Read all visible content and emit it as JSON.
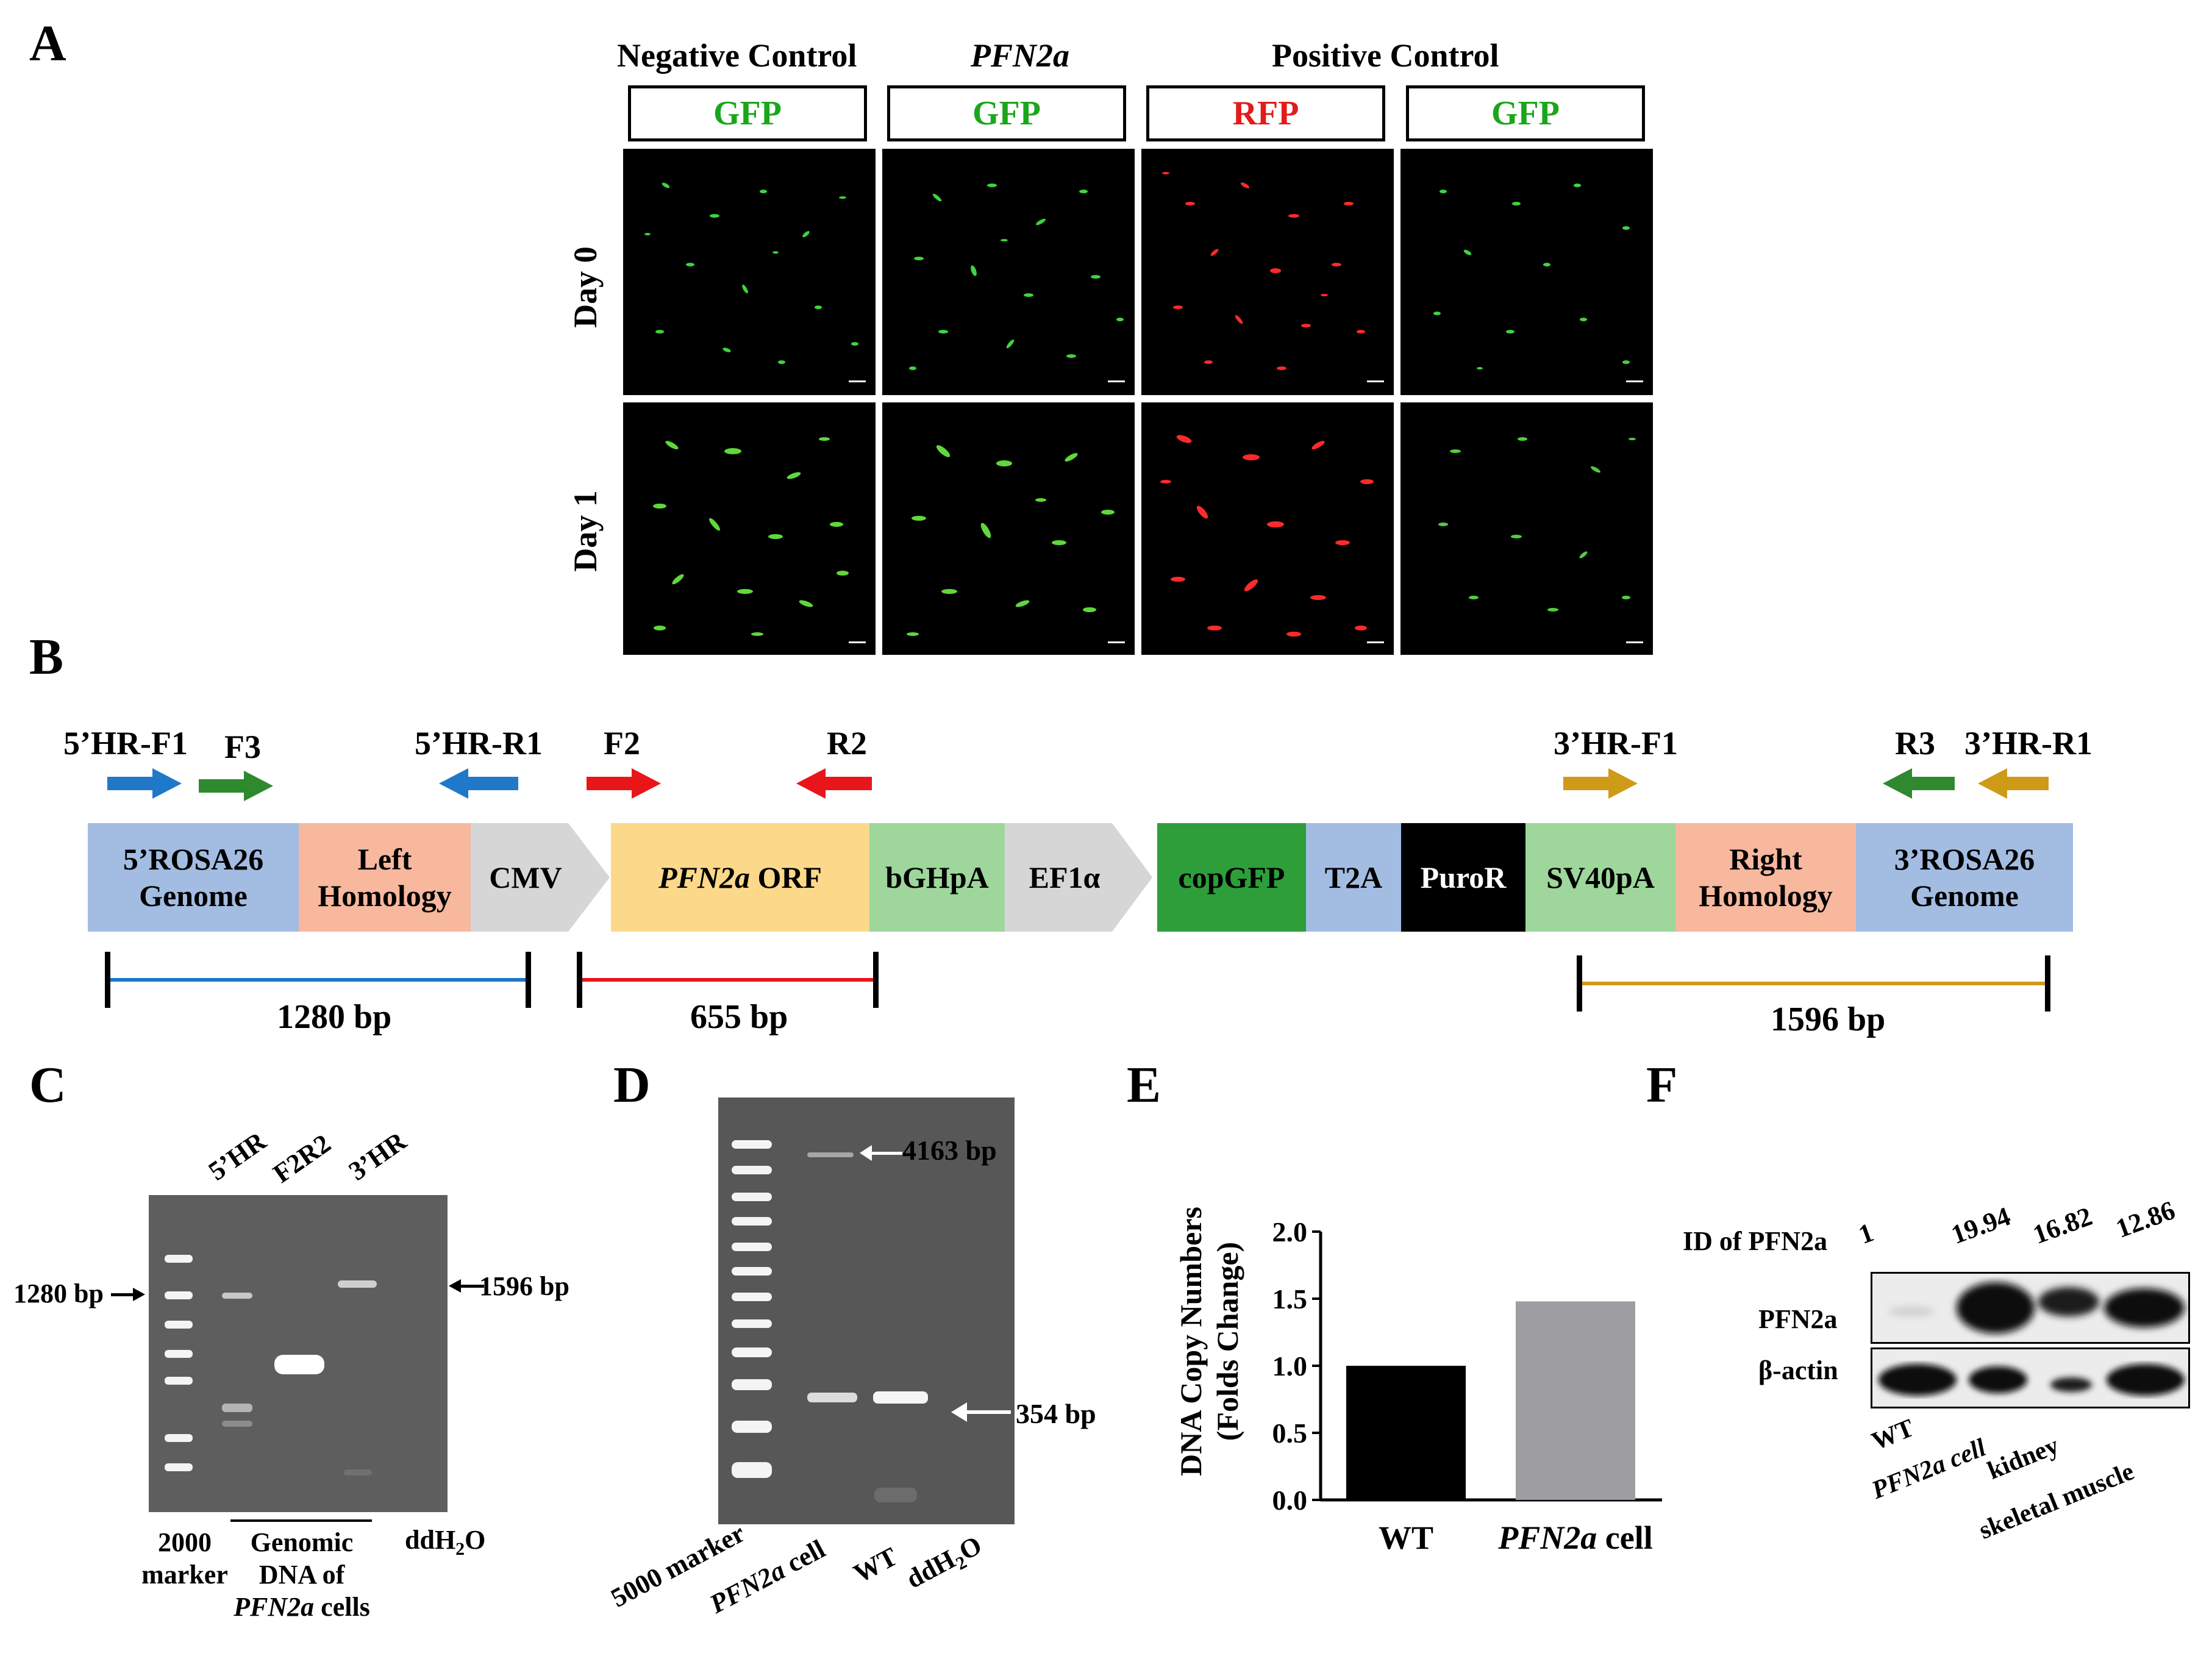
{
  "panels": {
    "A": "A",
    "B": "B",
    "C": "C",
    "D": "D",
    "E": "E",
    "F": "F"
  },
  "panel_a": {
    "headers": {
      "negative_control": "Negative Control",
      "pfn2a": "PFN2a",
      "positive_control": "Positive Control"
    },
    "channels": [
      "GFP",
      "GFP",
      "RFP",
      "GFP"
    ],
    "channel_colors": [
      "#1aa61a",
      "#1aa61a",
      "#e21b1b",
      "#1aa61a"
    ],
    "rows": [
      "Day 0",
      "Day 1"
    ]
  },
  "panel_b": {
    "primers": {
      "hr5_f1": "5’HR-F1",
      "f3": "F3",
      "hr5_r1": "5’HR-R1",
      "f2": "F2",
      "r2": "R2",
      "hr3_f1": "3’HR-F1",
      "r3": "R3",
      "hr3_r1": "3’HR-R1"
    },
    "segments": {
      "rosa5_l1": "5’ROSA26",
      "rosa5_l2": "Genome",
      "left_l1": "Left",
      "left_l2": "Homology",
      "cmv": "CMV",
      "orf_gene": "PFN2a",
      "orf_suffix": " ORF",
      "bghpa": "bGHpA",
      "ef1a": "EF1α",
      "copgfp": "copGFP",
      "t2a": "T2A",
      "puror": "PuroR",
      "sv40pa": "SV40pA",
      "right_l1": "Right",
      "right_l2": "Homology",
      "rosa3_l1": "3’ROSA26",
      "rosa3_l2": "Genome"
    },
    "amplicons": {
      "a1": "1280 bp",
      "a2": "655 bp",
      "a3": "1596 bp"
    },
    "colors": {
      "blue": "#1f78c8",
      "green": "#2f8a2f",
      "red": "#e8161b",
      "gold": "#cf9a17"
    }
  },
  "panel_c": {
    "lanes": [
      "5’HR",
      "F2R2",
      "3’HR"
    ],
    "size_left": "1280 bp",
    "size_right": "1596 bp",
    "bottom": {
      "marker_l1": "2000",
      "marker_l2": "marker",
      "genomic_l1": "Genomic",
      "genomic_l2": "DNA of",
      "genomic_gene": "PFN2a",
      "genomic_suffix": " cells",
      "water_main": "ddH",
      "water_sub": "2",
      "water_end": "O"
    }
  },
  "panel_d": {
    "size_top": "4163 bp",
    "size_mid": "354 bp",
    "lanes": {
      "marker": "5000 marker",
      "cell_gene": "PFN2a",
      "cell_suffix": " cell",
      "wt": "WT",
      "water_main": "ddH",
      "water_sub": "2",
      "water_end": "O"
    }
  },
  "chart_data": {
    "type": "bar",
    "categories": [
      "WT",
      "PFN2a cell"
    ],
    "values": [
      1.0,
      1.48
    ],
    "colors": [
      "#000000",
      "#9e9ea2"
    ],
    "ylabel_l1": "DNA Copy Numbers",
    "ylabel_l2": "(Folds Change)",
    "ylim": [
      0,
      2.0
    ],
    "yticks": [
      "0.0",
      "0.5",
      "1.0",
      "1.5",
      "2.0"
    ],
    "grid": false
  },
  "panel_f": {
    "id_label": "ID of PFN2a",
    "id_values": [
      "1",
      "19.94",
      "16.82",
      "12.86"
    ],
    "row_labels": [
      "PFN2a",
      "β-actin"
    ],
    "lanes": [
      "WT",
      "PFN2a cell",
      "kidney",
      "skeletal muscle"
    ]
  }
}
